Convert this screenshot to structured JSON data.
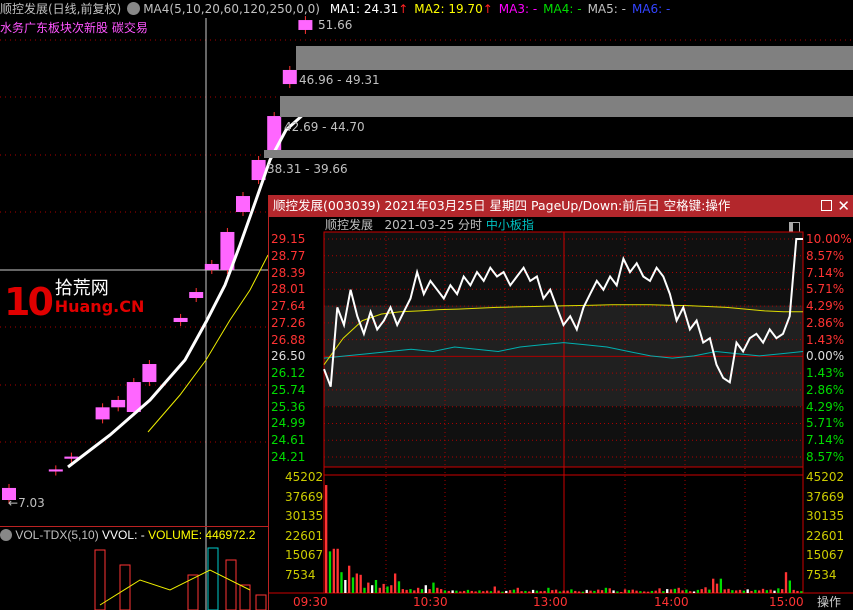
{
  "legend": {
    "title": "顺控发展(日线,前复权)",
    "indicator": "MA4(5,10,20,60,120,250,0,0)",
    "ma": [
      {
        "label": "MA1: 24.31",
        "color": "#ffffff",
        "arrow": "↑"
      },
      {
        "label": "MA2: 19.70",
        "color": "#ffff00",
        "arrow": "↑"
      },
      {
        "label": "MA3: -",
        "color": "#ff00ff"
      },
      {
        "label": "MA4: -",
        "color": "#00dd00"
      },
      {
        "label": "MA5: -",
        "color": "#c0c0c0"
      },
      {
        "label": "MA6: -",
        "color": "#3344ff"
      }
    ]
  },
  "subtitle": "水务广东板块次新股  碳交易",
  "price_labels": {
    "high": "51.66",
    "r1": "46.96 - 49.31",
    "r2": "42.69 - 44.70",
    "r3": "38.31 - 39.66",
    "low": "7.03"
  },
  "logo": {
    "text1": "10",
    "text2": "拾荒网",
    "text3": "Huang.CN"
  },
  "volume_legend": {
    "name": "VOL-TDX(5,10)",
    "vvol": "VVOL: -",
    "volume": "VOLUME: 446972.2"
  },
  "candles": [
    {
      "slot": 0,
      "lo": 7.03,
      "hi": 8.16
    },
    {
      "slot": 3,
      "lo": 9.7,
      "hi": 9.9
    },
    {
      "slot": 4,
      "lo": 10.9,
      "hi": 11.1
    },
    {
      "slot": 6,
      "lo": 14.59,
      "hi": 15.72
    },
    {
      "slot": 7,
      "lo": 15.72,
      "hi": 16.41
    },
    {
      "slot": 8,
      "lo": 15.28,
      "hi": 18.09
    },
    {
      "slot": 9,
      "lo": 18.09,
      "hi": 19.78
    },
    {
      "slot": 11,
      "lo": 23.72,
      "hi": 24.1
    },
    {
      "slot": 12,
      "lo": 25.97,
      "hi": 26.53
    },
    {
      "slot": 13,
      "lo": 28.6,
      "hi": 29.16
    },
    {
      "slot": 14,
      "lo": 28.6,
      "hi": 32.16
    },
    {
      "slot": 15,
      "lo": 34.03,
      "hi": 35.53
    },
    {
      "slot": 16,
      "lo": 37.03,
      "hi": 38.91
    },
    {
      "slot": 17,
      "lo": 39.66,
      "hi": 43.03
    },
    {
      "slot": 18,
      "lo": 46.03,
      "hi": 47.35
    },
    {
      "slot": 19,
      "lo": 51.1,
      "hi": 52.03
    }
  ],
  "popup": {
    "title": "顺控发展(003039) 2021年03月25日 星期四 PageUp/Down:前后日 空格键:操作",
    "name": "顺控发展",
    "date": "2021-03-25",
    "mode": "分时",
    "index": "中小板指",
    "price_axis": [
      "29.15",
      "28.77",
      "28.39",
      "28.01",
      "27.64",
      "27.26",
      "26.88",
      "26.50",
      "26.12",
      "25.74",
      "25.36",
      "24.99",
      "24.61",
      "24.21"
    ],
    "pct_axis": [
      "10.00%",
      "8.57%",
      "7.14%",
      "5.71%",
      "4.29%",
      "2.86%",
      "1.43%",
      "0.00%",
      "1.43%",
      "2.86%",
      "4.29%",
      "5.71%",
      "7.14%",
      "8.57%"
    ],
    "vol_axis": [
      "45202",
      "37669",
      "30135",
      "22601",
      "15067",
      "7534"
    ],
    "time_axis": [
      "09:30",
      "10:30",
      "13:00",
      "14:00",
      "15:00"
    ],
    "op_label": "操作"
  },
  "chart_data": {
    "type": "line",
    "prev_close": 26.5,
    "ylim": [
      23.85,
      29.15
    ],
    "price": [
      26.2,
      25.8,
      27.6,
      27.2,
      28.0,
      27.4,
      27.0,
      27.5,
      27.1,
      27.3,
      27.6,
      27.2,
      27.5,
      27.8,
      28.4,
      27.9,
      28.2,
      28.0,
      27.8,
      28.1,
      27.9,
      28.3,
      28.1,
      28.4,
      28.2,
      28.5,
      28.3,
      28.4,
      28.1,
      28.3,
      28.5,
      28.2,
      28.3,
      27.8,
      28.0,
      27.6,
      27.2,
      27.4,
      27.1,
      27.6,
      27.9,
      28.2,
      28.0,
      28.3,
      28.1,
      28.7,
      28.4,
      28.6,
      28.3,
      28.2,
      28.5,
      28.3,
      27.9,
      27.3,
      27.6,
      27.1,
      27.3,
      26.8,
      26.9,
      26.3,
      26.0,
      25.9,
      26.8,
      26.6,
      26.9,
      27.0,
      26.8,
      27.1,
      26.9,
      27.0,
      27.4,
      29.15,
      29.15
    ],
    "avg": [
      26.3,
      26.9,
      27.3,
      27.45,
      27.5,
      27.52,
      27.55,
      27.56,
      27.58,
      27.6,
      27.61,
      27.62,
      27.63,
      27.64,
      27.65,
      27.66,
      27.66,
      27.66,
      27.65,
      27.64,
      27.62,
      27.6,
      27.56,
      27.52,
      27.5,
      27.5
    ],
    "index": [
      26.45,
      26.5,
      26.55,
      26.6,
      26.65,
      26.6,
      26.7,
      26.65,
      26.6,
      26.7,
      26.75,
      26.8,
      26.75,
      26.7,
      26.6,
      26.5,
      26.45,
      26.5,
      26.6,
      26.55,
      26.5,
      26.55,
      26.6
    ],
    "volume": [
      41500,
      16000,
      17000,
      17000,
      8000,
      5000,
      10500,
      6000,
      7500,
      7000,
      2000,
      4000,
      3000,
      5000,
      2000,
      3500,
      2500,
      3000,
      7500,
      4500,
      1500,
      1200,
      1500,
      1000,
      2000,
      1500,
      3000,
      1500,
      4000,
      2000,
      1500,
      1000,
      800,
      1000,
      900,
      600,
      800,
      1200,
      800,
      600,
      1000,
      700,
      900,
      700,
      2500,
      900,
      500,
      800,
      1100,
      1300,
      2000,
      700,
      800,
      600,
      1200,
      900,
      700,
      800,
      2000,
      1100,
      1300,
      600,
      900,
      900,
      1400,
      800,
      600,
      500,
      1200,
      900,
      800,
      1300,
      1100,
      2000,
      1800,
      1000,
      600,
      400,
      1400,
      1100,
      1300,
      900,
      700,
      600,
      500,
      800,
      900,
      1800,
      700,
      1500,
      1400,
      1600,
      2000,
      1000,
      1300,
      700,
      600,
      1200,
      1500,
      2200,
      1300,
      5500,
      3600,
      5500,
      1400,
      1600,
      1100,
      1000,
      1200,
      900,
      1400,
      800,
      1200,
      1000,
      1600,
      1100,
      1300,
      900,
      1800,
      1500,
      8000,
      4800,
      1200,
      800,
      700
    ]
  }
}
